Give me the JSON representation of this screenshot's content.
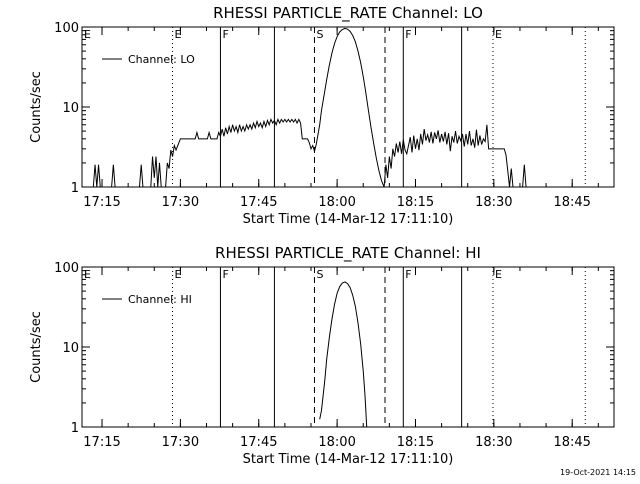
{
  "footer": {
    "date": "19-Oct-2021 14:15"
  },
  "chart_data": [
    {
      "type": "line",
      "title": "RHESSI PARTICLE_RATE Channel: LO",
      "xlabel": "Start Time (14-Mar-12 17:11:10)",
      "ylabel": "Counts/sec",
      "yscale": "log",
      "xlim": [
        "17:11:10",
        "18:53:00"
      ],
      "ylim": [
        1,
        100
      ],
      "xticks": [
        "17:15",
        "17:30",
        "17:45",
        "18:00",
        "18:15",
        "18:30",
        "18:45"
      ],
      "yticks": [
        "1",
        "10",
        "100"
      ],
      "legend": {
        "label": "Channel: LO",
        "position": "top-left"
      },
      "vlines": [
        {
          "x": "17:28:30",
          "style": "dotted",
          "label": "E"
        },
        {
          "x": "17:37:40",
          "style": "solid",
          "label": "F"
        },
        {
          "x": "17:48:00",
          "style": "solid",
          "label": ""
        },
        {
          "x": "17:55:40",
          "style": "dashed",
          "label": "S"
        },
        {
          "x": "18:09:10",
          "style": "dashed",
          "label": ""
        },
        {
          "x": "18:12:40",
          "style": "solid",
          "label": "F"
        },
        {
          "x": "18:23:50",
          "style": "solid",
          "label": ""
        },
        {
          "x": "18:29:50",
          "style": "dotted",
          "label": "E"
        },
        {
          "x": "18:47:30",
          "style": "dotted",
          "label": ""
        }
      ],
      "corner_label": "E",
      "series": [
        {
          "points": [
            [
              "17:13:20",
              1
            ],
            [
              "17:13:40",
              1.9
            ],
            [
              "17:14:00",
              1
            ],
            [
              "17:14:20",
              1.9
            ],
            [
              "17:14:40",
              1
            ],
            [
              "17:16:50",
              1
            ],
            [
              "17:17:10",
              1.9
            ],
            [
              "17:17:30",
              1
            ],
            [
              "17:22:10",
              1
            ],
            [
              "17:22:30",
              1.9
            ],
            [
              "17:22:50",
              1
            ],
            [
              "17:24:20",
              1
            ],
            [
              "17:24:40",
              2.4
            ],
            [
              "17:25:00",
              1.3
            ],
            [
              "17:25:20",
              2.4
            ],
            [
              "17:25:40",
              1
            ],
            [
              "17:26:00",
              2
            ],
            [
              "17:26:20",
              1
            ],
            [
              "17:27:10",
              1
            ],
            [
              "17:27:30",
              2
            ],
            [
              "17:27:50",
              1.7
            ],
            [
              "17:28:10",
              2.9
            ],
            [
              "17:28:30",
              2.4
            ],
            [
              "17:28:50",
              3.3
            ],
            [
              "17:29:10",
              2.9
            ],
            [
              "17:29:30",
              3.3
            ],
            [
              "17:30:00",
              4
            ],
            [
              "17:32:50",
              4
            ],
            [
              "17:33:10",
              4.8
            ],
            [
              "17:33:30",
              4
            ],
            [
              "17:35:10",
              4
            ],
            [
              "17:35:30",
              4.8
            ],
            [
              "17:35:50",
              4
            ],
            [
              "17:37:00",
              4
            ],
            [
              "17:37:20",
              4.8
            ],
            [
              "17:37:40",
              4.3
            ],
            [
              "17:38:00",
              5.3
            ],
            [
              "17:38:20",
              4.3
            ],
            [
              "17:38:40",
              5.5
            ],
            [
              "17:39:00",
              4.6
            ],
            [
              "17:39:20",
              5.7
            ],
            [
              "17:39:40",
              4.8
            ],
            [
              "17:40:00",
              6
            ],
            [
              "17:40:20",
              5
            ],
            [
              "17:40:40",
              5.7
            ],
            [
              "17:41:00",
              4.8
            ],
            [
              "17:41:20",
              6
            ],
            [
              "17:41:40",
              5
            ],
            [
              "17:42:00",
              5.7
            ],
            [
              "17:42:20",
              5
            ],
            [
              "17:42:40",
              6
            ],
            [
              "17:43:00",
              5.3
            ],
            [
              "17:43:20",
              6
            ],
            [
              "17:43:40",
              5.3
            ],
            [
              "17:44:00",
              6.3
            ],
            [
              "17:44:20",
              5.5
            ],
            [
              "17:44:40",
              6.6
            ],
            [
              "17:45:00",
              5.7
            ],
            [
              "17:45:20",
              6.3
            ],
            [
              "17:45:40",
              5.5
            ],
            [
              "17:46:00",
              6.6
            ],
            [
              "17:46:20",
              5.7
            ],
            [
              "17:46:40",
              6.8
            ],
            [
              "17:47:00",
              6
            ],
            [
              "17:47:20",
              7
            ],
            [
              "17:47:40",
              6.3
            ],
            [
              "17:48:00",
              6.8
            ],
            [
              "17:48:20",
              6
            ],
            [
              "17:48:40",
              7
            ],
            [
              "17:49:00",
              6.3
            ],
            [
              "17:49:20",
              7
            ],
            [
              "17:49:40",
              6.5
            ],
            [
              "17:50:00",
              7
            ],
            [
              "17:50:20",
              6.5
            ],
            [
              "17:50:40",
              7
            ],
            [
              "17:51:00",
              6.5
            ],
            [
              "17:51:20",
              7
            ],
            [
              "17:51:40",
              6.5
            ],
            [
              "17:52:00",
              7
            ],
            [
              "17:52:20",
              6.3
            ],
            [
              "17:52:40",
              7
            ],
            [
              "17:53:00",
              6.3
            ],
            [
              "17:53:20",
              4
            ],
            [
              "17:54:20",
              4
            ],
            [
              "17:54:40",
              3.6
            ],
            [
              "17:55:00",
              3
            ],
            [
              "17:55:20",
              3.3
            ],
            [
              "17:55:40",
              2.8
            ],
            [
              "17:56:00",
              3.4
            ],
            [
              "17:56:20",
              4.5
            ],
            [
              "17:56:40",
              6
            ],
            [
              "17:57:00",
              9
            ],
            [
              "17:57:30",
              14
            ],
            [
              "17:58:00",
              22
            ],
            [
              "17:58:30",
              33
            ],
            [
              "17:59:00",
              47
            ],
            [
              "17:59:30",
              62
            ],
            [
              "18:00:00",
              76
            ],
            [
              "18:00:30",
              87
            ],
            [
              "18:01:00",
              93
            ],
            [
              "18:01:30",
              96
            ],
            [
              "18:02:00",
              94
            ],
            [
              "18:02:30",
              88
            ],
            [
              "18:03:00",
              78
            ],
            [
              "18:03:30",
              65
            ],
            [
              "18:04:00",
              50
            ],
            [
              "18:04:30",
              36
            ],
            [
              "18:05:00",
              24
            ],
            [
              "18:05:30",
              15
            ],
            [
              "18:06:00",
              9
            ],
            [
              "18:06:30",
              5.5
            ],
            [
              "18:07:00",
              3.5
            ],
            [
              "18:07:30",
              2.3
            ],
            [
              "18:08:00",
              1.6
            ],
            [
              "18:08:30",
              1.2
            ],
            [
              "18:09:00",
              1
            ],
            [
              "18:09:20",
              1.9
            ],
            [
              "18:09:40",
              1.3
            ],
            [
              "18:10:00",
              2.4
            ],
            [
              "18:10:20",
              1.7
            ],
            [
              "18:10:40",
              3
            ],
            [
              "18:11:00",
              2.4
            ],
            [
              "18:11:20",
              3.5
            ],
            [
              "18:11:40",
              2.7
            ],
            [
              "18:12:00",
              3.7
            ],
            [
              "18:12:20",
              2.6
            ],
            [
              "18:12:40",
              3.9
            ],
            [
              "18:13:00",
              2.9
            ],
            [
              "18:13:20",
              2.6
            ],
            [
              "18:13:40",
              3.3
            ],
            [
              "18:14:00",
              4.2
            ],
            [
              "18:14:20",
              2.7
            ],
            [
              "18:14:40",
              4.4
            ],
            [
              "18:15:00",
              3
            ],
            [
              "18:15:20",
              4
            ],
            [
              "18:15:40",
              2.9
            ],
            [
              "18:16:00",
              4.6
            ],
            [
              "18:16:20",
              3.4
            ],
            [
              "18:16:40",
              5.3
            ],
            [
              "18:17:00",
              3.8
            ],
            [
              "18:17:20",
              4.5
            ],
            [
              "18:17:40",
              3.6
            ],
            [
              "18:18:00",
              4.9
            ],
            [
              "18:18:20",
              3.5
            ],
            [
              "18:18:40",
              4.8
            ],
            [
              "18:19:00",
              4
            ],
            [
              "18:19:20",
              5.1
            ],
            [
              "18:19:40",
              3.6
            ],
            [
              "18:20:00",
              4.6
            ],
            [
              "18:20:20",
              3.7
            ],
            [
              "18:20:40",
              4.9
            ],
            [
              "18:21:00",
              3.4
            ],
            [
              "18:21:20",
              4.7
            ],
            [
              "18:21:40",
              2.8
            ],
            [
              "18:22:00",
              4.3
            ],
            [
              "18:22:20",
              3.6
            ],
            [
              "18:22:40",
              5
            ],
            [
              "18:23:00",
              3.5
            ],
            [
              "18:23:20",
              4.3
            ],
            [
              "18:23:40",
              3.8
            ],
            [
              "18:24:00",
              4.6
            ],
            [
              "18:24:20",
              3.2
            ],
            [
              "18:24:40",
              4.6
            ],
            [
              "18:25:00",
              3.4
            ],
            [
              "18:25:20",
              5
            ],
            [
              "18:25:40",
              3.3
            ],
            [
              "18:26:00",
              4
            ],
            [
              "18:26:20",
              3.1
            ],
            [
              "18:26:40",
              5.2
            ],
            [
              "18:27:00",
              3.3
            ],
            [
              "18:27:20",
              4.4
            ],
            [
              "18:27:40",
              3.4
            ],
            [
              "18:28:00",
              4
            ],
            [
              "18:28:20",
              3.7
            ],
            [
              "18:28:40",
              6
            ],
            [
              "18:29:00",
              3
            ],
            [
              "18:32:00",
              3
            ],
            [
              "18:32:20",
              2.5
            ],
            [
              "18:32:40",
              1.6
            ],
            [
              "18:33:00",
              1
            ],
            [
              "18:33:20",
              1.7
            ],
            [
              "18:33:40",
              1
            ],
            [
              "18:35:30",
              1
            ],
            [
              "18:35:50",
              1.9
            ],
            [
              "18:36:10",
              1
            ]
          ]
        }
      ]
    },
    {
      "type": "line",
      "title": "RHESSI PARTICLE_RATE Channel: HI",
      "xlabel": "Start Time (14-Mar-12 17:11:10)",
      "ylabel": "Counts/sec",
      "yscale": "log",
      "xlim": [
        "17:11:10",
        "18:53:00"
      ],
      "ylim": [
        1,
        100
      ],
      "xticks": [
        "17:15",
        "17:30",
        "17:45",
        "18:00",
        "18:15",
        "18:30",
        "18:45"
      ],
      "yticks": [
        "1",
        "10",
        "100"
      ],
      "legend": {
        "label": "Channel: HI",
        "position": "top-left"
      },
      "vlines": [
        {
          "x": "17:28:30",
          "style": "dotted",
          "label": "E"
        },
        {
          "x": "17:37:40",
          "style": "solid",
          "label": "F"
        },
        {
          "x": "17:48:00",
          "style": "solid",
          "label": ""
        },
        {
          "x": "17:55:40",
          "style": "dashed",
          "label": "S"
        },
        {
          "x": "18:09:10",
          "style": "dashed",
          "label": ""
        },
        {
          "x": "18:12:40",
          "style": "solid",
          "label": "F"
        },
        {
          "x": "18:23:50",
          "style": "solid",
          "label": ""
        },
        {
          "x": "18:29:50",
          "style": "dotted",
          "label": "E"
        },
        {
          "x": "18:47:30",
          "style": "dotted",
          "label": ""
        }
      ],
      "corner_label": "E",
      "series": [
        {
          "points": [
            [
              "17:56:40",
              1.25
            ],
            [
              "17:57:00",
              1.6
            ],
            [
              "17:57:20",
              2.5
            ],
            [
              "17:57:40",
              4
            ],
            [
              "17:58:00",
              7
            ],
            [
              "17:58:30",
              13
            ],
            [
              "17:59:00",
              22
            ],
            [
              "17:59:30",
              34
            ],
            [
              "18:00:00",
              47
            ],
            [
              "18:00:30",
              57
            ],
            [
              "18:01:00",
              63
            ],
            [
              "18:01:30",
              65
            ],
            [
              "18:02:00",
              62
            ],
            [
              "18:02:30",
              55
            ],
            [
              "18:03:00",
              44
            ],
            [
              "18:03:30",
              32
            ],
            [
              "18:04:00",
              20
            ],
            [
              "18:04:30",
              11
            ],
            [
              "18:05:00",
              5
            ],
            [
              "18:05:20",
              2.5
            ],
            [
              "18:05:40",
              1
            ]
          ]
        }
      ]
    }
  ]
}
